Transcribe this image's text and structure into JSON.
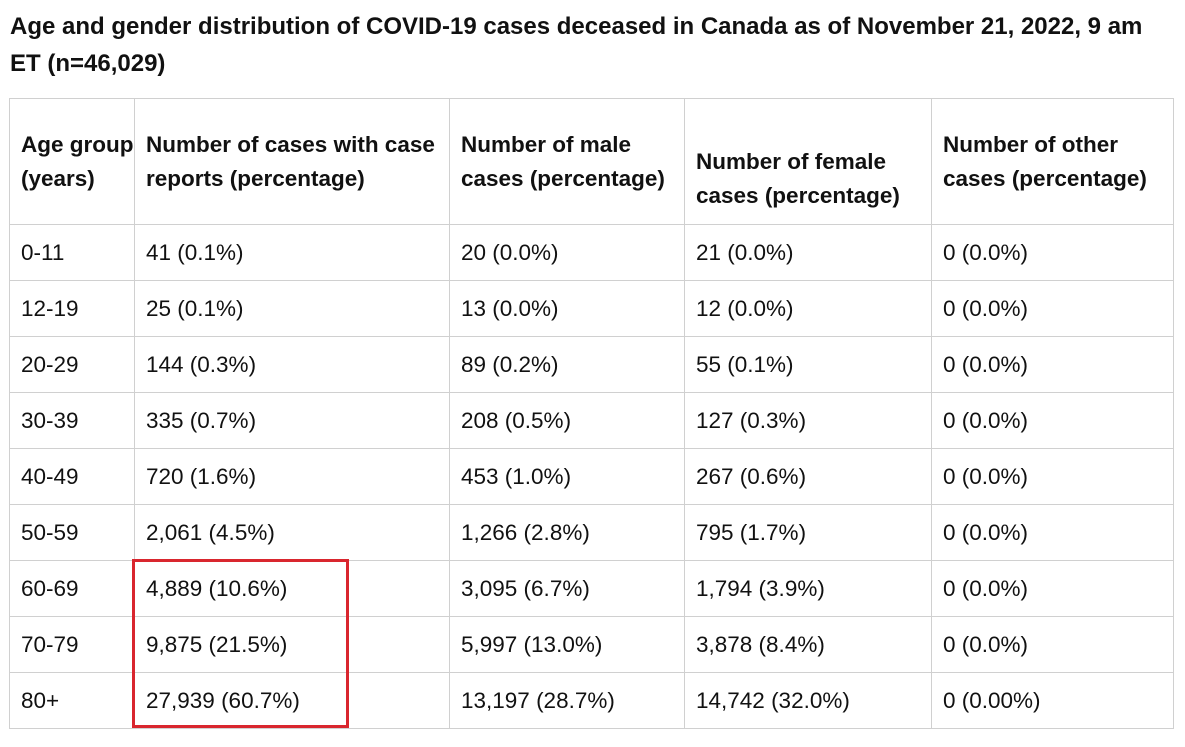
{
  "title": "Age and gender distribution of COVID-19 cases deceased in Canada as of November 21, 2022, 9 am ET (n=46,029)",
  "table": {
    "headers": [
      "Age group (years)",
      "Number of cases with case reports (percentage)",
      "Number of male cases (percentage)",
      "Number of female cases (percentage)",
      "Number of other cases (percentage)"
    ],
    "rows": [
      [
        "0-11",
        "41 (0.1%)",
        "20 (0.0%)",
        "21 (0.0%)",
        "0 (0.0%)"
      ],
      [
        "12-19",
        "25 (0.1%)",
        "13 (0.0%)",
        "12 (0.0%)",
        "0 (0.0%)"
      ],
      [
        "20-29",
        "144 (0.3%)",
        "89 (0.2%)",
        "55 (0.1%)",
        "0 (0.0%)"
      ],
      [
        "30-39",
        "335 (0.7%)",
        "208 (0.5%)",
        "127 (0.3%)",
        "0 (0.0%)"
      ],
      [
        "40-49",
        "720 (1.6%)",
        "453 (1.0%)",
        "267 (0.6%)",
        "0 (0.0%)"
      ],
      [
        "50-59",
        "2,061 (4.5%)",
        "1,266 (2.8%)",
        "795 (1.7%)",
        "0 (0.0%)"
      ],
      [
        "60-69",
        "4,889 (10.6%)",
        "3,095 (6.7%)",
        "1,794 (3.9%)",
        "0 (0.0%)"
      ],
      [
        "70-79",
        "9,875 (21.5%)",
        "5,997 (13.0%)",
        "3,878 (8.4%)",
        "0 (0.0%)"
      ],
      [
        "80+",
        "27,939 (60.7%)",
        "13,197 (28.7%)",
        "14,742 (32.0%)",
        "0 (0.00%)"
      ]
    ]
  },
  "highlight": {
    "color": "#d9262e",
    "rows": [
      "60-69",
      "70-79",
      "80+"
    ],
    "column": "Number of cases with case reports (percentage)"
  }
}
